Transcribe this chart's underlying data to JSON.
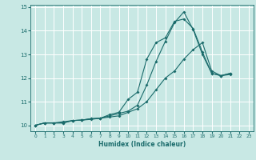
{
  "xlabel": "Humidex (Indice chaleur)",
  "bg_color": "#c8e8e4",
  "grid_color": "#ffffff",
  "line_color": "#1a6b6b",
  "xlim": [
    -0.5,
    23.5
  ],
  "ylim": [
    9.75,
    15.1
  ],
  "yticks": [
    10,
    11,
    12,
    13,
    14,
    15
  ],
  "xticks": [
    0,
    1,
    2,
    3,
    4,
    5,
    6,
    7,
    8,
    9,
    10,
    11,
    12,
    13,
    14,
    15,
    16,
    17,
    18,
    19,
    20,
    21,
    22,
    23
  ],
  "series1_x": [
    0,
    1,
    2,
    3,
    4,
    5,
    6,
    7,
    8,
    9,
    10,
    11,
    12,
    13,
    14,
    15,
    16,
    17,
    18,
    19,
    20,
    21
  ],
  "series1_y": [
    10.0,
    10.1,
    10.1,
    10.15,
    10.2,
    10.22,
    10.25,
    10.3,
    10.35,
    10.4,
    10.55,
    10.7,
    11.0,
    11.5,
    12.0,
    12.3,
    12.8,
    13.2,
    13.5,
    12.3,
    12.1,
    12.15
  ],
  "series2_x": [
    0,
    1,
    2,
    3,
    4,
    5,
    6,
    7,
    8,
    9,
    10,
    11,
    12,
    13,
    14,
    15,
    16,
    17,
    18,
    19,
    20,
    21
  ],
  "series2_y": [
    10.0,
    10.1,
    10.1,
    10.1,
    10.2,
    10.22,
    10.28,
    10.3,
    10.45,
    10.55,
    11.1,
    11.4,
    12.8,
    13.5,
    13.7,
    14.4,
    14.5,
    14.1,
    13.1,
    12.2,
    12.1,
    12.2
  ],
  "series3_x": [
    0,
    1,
    2,
    3,
    4,
    5,
    6,
    7,
    8,
    9,
    10,
    11,
    12,
    13,
    14,
    15,
    16,
    17,
    18,
    19,
    20,
    21
  ],
  "series3_y": [
    10.0,
    10.1,
    10.1,
    10.1,
    10.2,
    10.22,
    10.28,
    10.3,
    10.4,
    10.5,
    10.6,
    10.85,
    11.7,
    12.7,
    13.55,
    14.35,
    14.8,
    14.05,
    13.0,
    12.2,
    12.1,
    12.2
  ]
}
